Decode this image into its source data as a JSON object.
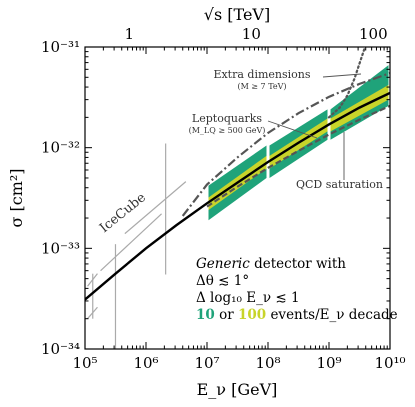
{
  "chart_data": {
    "type": "line",
    "xlabel": "E_ν [GeV]",
    "ylabel": "σ [cm²]",
    "x2label": "√s [TeV]",
    "xscale": "log",
    "yscale": "log",
    "xlim": [
      100000,
      10000000000
    ],
    "ylim": [
      1e-34,
      1e-31
    ],
    "x_ticks": [
      "10⁵",
      "10⁶",
      "10⁷",
      "10⁸",
      "10⁹",
      "10¹⁰"
    ],
    "y_ticks": [
      "10⁻³⁴",
      "10⁻³³",
      "10⁻³²",
      "10⁻³¹"
    ],
    "x2_ticks": [
      {
        "label": "1",
        "e_nu": 533000
      },
      {
        "label": "10",
        "e_nu": 53300000
      },
      {
        "label": "100",
        "e_nu": 5330000000
      }
    ],
    "colors": {
      "green": "#1fa37a",
      "yellow": "#c8d42a",
      "sm": "#000000",
      "bsm": "#555555",
      "icecube": "#aaaaaa"
    },
    "series": [
      {
        "name": "",
        "style": "solid",
        "x": [
          100000,
          316000,
          1000000,
          3160000,
          10000000,
          31600000,
          100000000,
          316000000,
          1000000000,
          3160000000,
          10000000000
        ],
        "y": [
          3.1e-34,
          5.6e-34,
          1e-33,
          1.7e-33,
          2.8e-33,
          4.5e-33,
          7.2e-33,
          1.12e-32,
          1.7e-32,
          2.5e-32,
          3.5e-32
        ]
      },
      {
        "name": "Extra dimensions",
        "style": "dotted",
        "x": [
          1000000000,
          1500000000,
          2000000000,
          2600000000,
          3200000000,
          4000000000,
          5000000000
        ],
        "y": [
          2e-32,
          2.5e-32,
          3.3e-32,
          4.8e-32,
          7e-32,
          1.05e-31,
          1.6e-31
        ]
      },
      {
        "name": "Leptoquarks",
        "style": "dashdot",
        "x": [
          4000000,
          10000000,
          31600000,
          100000000,
          316000000,
          1000000000,
          3160000000,
          10000000000
        ],
        "y": [
          2.1e-33,
          4.3e-33,
          8e-33,
          1.4e-32,
          2.2e-32,
          3.2e-32,
          4.3e-32,
          5.5e-32
        ]
      },
      {
        "name": "QCD saturation",
        "style": "dashed",
        "x": [
          10000000,
          31600000,
          100000000,
          316000000,
          1000000000,
          3160000000,
          10000000000
        ],
        "y": [
          2.6e-33,
          4.1e-33,
          6.3e-33,
          9.3e-33,
          1.35e-32,
          1.9e-32,
          2.6e-32
        ]
      }
    ],
    "bands": [
      {
        "x": [
          10000000,
          100000000
        ],
        "y_low_10": [
          1.9e-33,
          5e-33
        ],
        "y_high_10": [
          4.2e-33,
          1.05e-32
        ],
        "y_low_100": [
          2.4e-33,
          6.2e-33
        ],
        "y_high_100": [
          3.2e-33,
          8.3e-33
        ]
      },
      {
        "x": [
          100000000,
          1000000000
        ],
        "y_low_10": [
          5e-33,
          1.2e-32
        ],
        "y_high_10": [
          1.05e-32,
          2.4e-32
        ],
        "y_low_100": [
          6.2e-33,
          1.45e-32
        ],
        "y_high_100": [
          8.3e-33,
          1.95e-32
        ]
      },
      {
        "x": [
          1000000000,
          10000000000
        ],
        "y_low_10": [
          1.2e-32,
          2.6e-32
        ],
        "y_high_10": [
          2.4e-32,
          6.6e-32
        ],
        "y_low_100": [
          1.45e-32,
          3e-32
        ],
        "y_high_100": [
          1.95e-32,
          4.2e-32
        ]
      }
    ],
    "icecube_label": "IceCube",
    "icecube_segments": [
      {
        "x": [
          110000,
          160000
        ],
        "y": [
          4.2e-34,
          5.6e-34
        ]
      },
      {
        "x": [
          110000,
          160000
        ],
        "y": [
          2e-34,
          2.6e-34
        ]
      },
      {
        "x": [
          134000,
          134000
        ],
        "y": [
          2e-34,
          5.6e-34
        ]
      },
      {
        "x": [
          180000,
          1800000
        ],
        "y": [
          6e-34,
          2.2e-33
        ]
      },
      {
        "x": [
          450000,
          4500000
        ],
        "y": [
          1.4e-33,
          4.6e-33
        ]
      },
      {
        "x": [
          316000,
          316000
        ],
        "y": [
          1e-34,
          1.1e-33
        ]
      },
      {
        "x": [
          2100000,
          2100000
        ],
        "y": [
          5.5e-34,
          1.1e-32
        ]
      }
    ],
    "annotations": {
      "extra_dim": {
        "title": "Extra dimensions",
        "sub": "(M ≥ 7 TeV)"
      },
      "leptoquarks": {
        "title": "Leptoquarks",
        "sub": "(M_LQ ≥ 500 GeV)"
      },
      "qcd": {
        "title": "QCD saturation"
      }
    },
    "legend": {
      "line1_italic": "Generic",
      "line1_rest": " detector with",
      "line2": "Δθ ≲ 1°",
      "line3": "Δ log₁₀ E_ν ≲ 1",
      "line4_n1": "10",
      "line4_mid": " or ",
      "line4_n2": "100",
      "line4_rest": " events/E_ν decade"
    }
  }
}
